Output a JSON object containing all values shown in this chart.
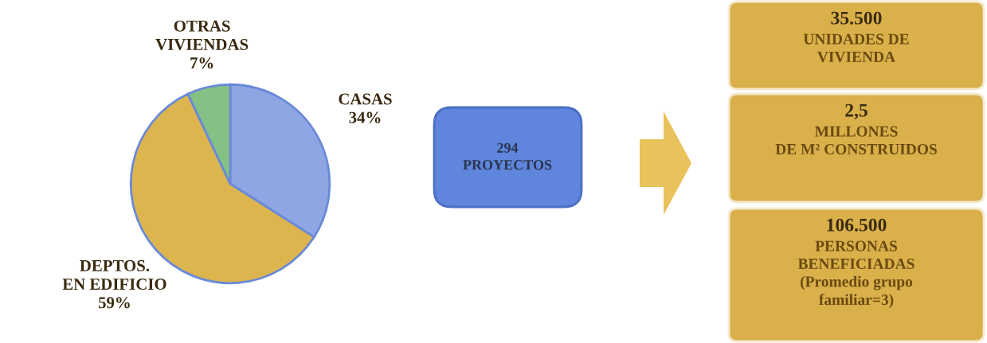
{
  "chart_data": [
    {
      "type": "pie",
      "categories": [
        "CASAS",
        "DEPTOS.\nEN EDIFICIO",
        "OTRAS\nVIVIENDAS"
      ],
      "values": [
        34,
        59,
        7
      ],
      "value_labels": [
        "34%",
        "59%",
        "7%"
      ],
      "colors": [
        "#8ea6e3",
        "#dcb54e",
        "#84c184"
      ]
    },
    {
      "type": "other",
      "annotations": [
        "294\nPROYECTOS",
        "35.500\nUNIDADES DE\nVIVIENDA",
        "2,5\nMILLONES\nDE M² CONSTRUIDOS",
        "106.500\nPERSONAS\nBENEFICIADAS\n(Promedio grupo\nfamiliar=3)"
      ]
    }
  ]
}
